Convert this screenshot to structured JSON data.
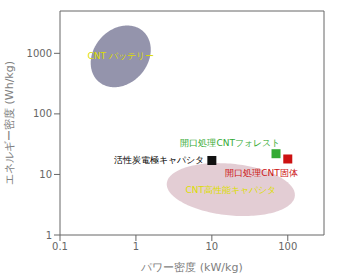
{
  "chart_data": {
    "type": "scatter",
    "xlabel": "パワー密度 (kW/kg)",
    "ylabel": "エネルギー密度 (Wh/kg)",
    "log": true,
    "xlim": [
      0.1,
      300
    ],
    "ylim": [
      1,
      5000
    ],
    "xticks": [
      0.1,
      1,
      10,
      100
    ],
    "yticks": [
      1,
      10,
      100,
      1000
    ],
    "series": [
      {
        "name": "活性炭電極キャパシタ",
        "color": "#111111",
        "label_color": "#000000",
        "marker": "square",
        "x": [
          10
        ],
        "values": [
          17
        ]
      },
      {
        "name": "開口処理CNTフォレスト",
        "color": "#33aa33",
        "label_color": "#33aa33",
        "marker": "square",
        "x": [
          70
        ],
        "values": [
          22
        ]
      },
      {
        "name": "開口処理CNT固体",
        "color": "#cc1111",
        "label_color": "#cc1111",
        "marker": "square",
        "x": [
          100
        ],
        "values": [
          18
        ]
      }
    ],
    "regions": [
      {
        "name": "CNT バッテリー",
        "color": "#707090",
        "label_color": "#dddd00",
        "x_center_log": -0.2,
        "y_center_log": 2.95,
        "width_log": 0.75,
        "height_log": 1.05,
        "angle": -20
      },
      {
        "name": "CNT高性能キャパシタ",
        "color": "#c090a0",
        "label_color": "#dddd00",
        "x_center_log": 1.25,
        "y_center_log": 0.75,
        "width_log": 1.7,
        "height_log": 0.85,
        "angle": -8
      }
    ]
  }
}
